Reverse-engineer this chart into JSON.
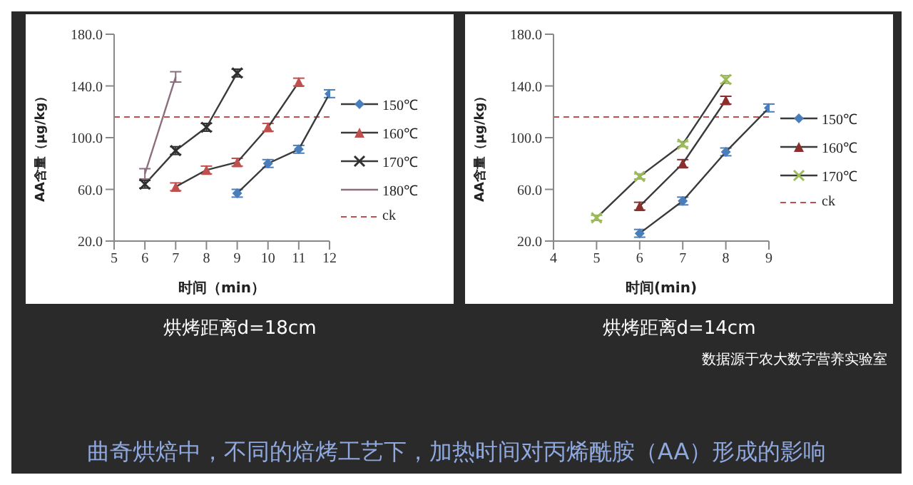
{
  "chart_data": [
    {
      "type": "line",
      "title": "烘烤距离d=18cm",
      "xlabel": "时间（min）",
      "ylabel": "AA含量（μg/kg）",
      "xlim": [
        5,
        12
      ],
      "xticks": [
        5,
        6,
        7,
        8,
        9,
        10,
        11,
        12
      ],
      "ylim": [
        20,
        180
      ],
      "yticks": [
        {
          "value": 20,
          "label": "20.0"
        },
        {
          "value": 60,
          "label": "60.0"
        },
        {
          "value": 100,
          "label": "100.0"
        },
        {
          "value": 140,
          "label": "140.0"
        },
        {
          "value": 180,
          "label": "180.0"
        }
      ],
      "legend": "right",
      "grid": false,
      "line_style": "solid",
      "series": [
        {
          "name": "150℃",
          "color": "#4a7ebb",
          "marker": "diamond",
          "x": [
            9,
            10,
            11,
            12
          ],
          "values": [
            57,
            80,
            91,
            134
          ],
          "errors": [
            3,
            3,
            3,
            3
          ]
        },
        {
          "name": "160℃",
          "color": "#c0504d",
          "marker": "triangle",
          "x": [
            7,
            8,
            9,
            10,
            11
          ],
          "values": [
            62,
            75,
            81,
            108,
            143
          ],
          "errors": [
            3,
            3,
            3,
            3,
            3
          ]
        },
        {
          "name": "170℃",
          "color": "#303030",
          "marker": "cross",
          "x": [
            6,
            7,
            8,
            9
          ],
          "values": [
            64,
            90,
            108,
            150
          ],
          "errors": [
            3,
            3,
            3,
            3
          ]
        },
        {
          "name": "180℃",
          "color": "#8c6d7d",
          "marker": "none",
          "x": [
            6,
            7
          ],
          "values": [
            72,
            147
          ],
          "errors": [
            4,
            4
          ]
        }
      ],
      "ref_lines": [
        {
          "axis": "y",
          "value": 116,
          "label": "ck",
          "color": "#c0504d",
          "line_style": "dashed"
        }
      ]
    },
    {
      "type": "line",
      "title": "烘烤距离d=14cm",
      "xlabel": "时间(min)",
      "ylabel": "AA含量（μg/kg）",
      "xlim": [
        4,
        9
      ],
      "xticks": [
        4,
        5,
        6,
        7,
        8,
        9
      ],
      "ylim": [
        20,
        180
      ],
      "yticks": [
        {
          "value": 20,
          "label": "20.0"
        },
        {
          "value": 60,
          "label": "60.0"
        },
        {
          "value": 100,
          "label": "100.0"
        },
        {
          "value": 140,
          "label": "140.0"
        },
        {
          "value": 180,
          "label": "180.0"
        }
      ],
      "legend": "right",
      "grid": false,
      "line_style": "solid",
      "series": [
        {
          "name": "150℃",
          "color": "#4a7ebb",
          "marker": "diamond",
          "x": [
            6,
            7,
            8,
            9
          ],
          "values": [
            26,
            51,
            89,
            123
          ],
          "errors": [
            3,
            3,
            3,
            3
          ]
        },
        {
          "name": "160℃",
          "color": "#8b2e2e",
          "marker": "triangle",
          "x": [
            6,
            7,
            8
          ],
          "values": [
            47,
            80,
            129
          ],
          "errors": [
            3,
            3,
            3
          ]
        },
        {
          "name": "170℃",
          "color": "#9bbb59",
          "marker": "cross",
          "x": [
            5,
            6,
            7,
            8
          ],
          "values": [
            38,
            70,
            95,
            145
          ],
          "errors": [
            2,
            2,
            2,
            3
          ]
        }
      ],
      "ref_lines": [
        {
          "axis": "y",
          "value": 116,
          "label": "ck",
          "color": "#c0504d",
          "line_style": "dashed"
        }
      ],
      "annotations": [
        "数据源于农大数字营养实验室",
        "曲奇烘焙中，不同的焙烤工艺下，加热时间对丙烯酰胺（AA）形成的影响"
      ]
    }
  ]
}
